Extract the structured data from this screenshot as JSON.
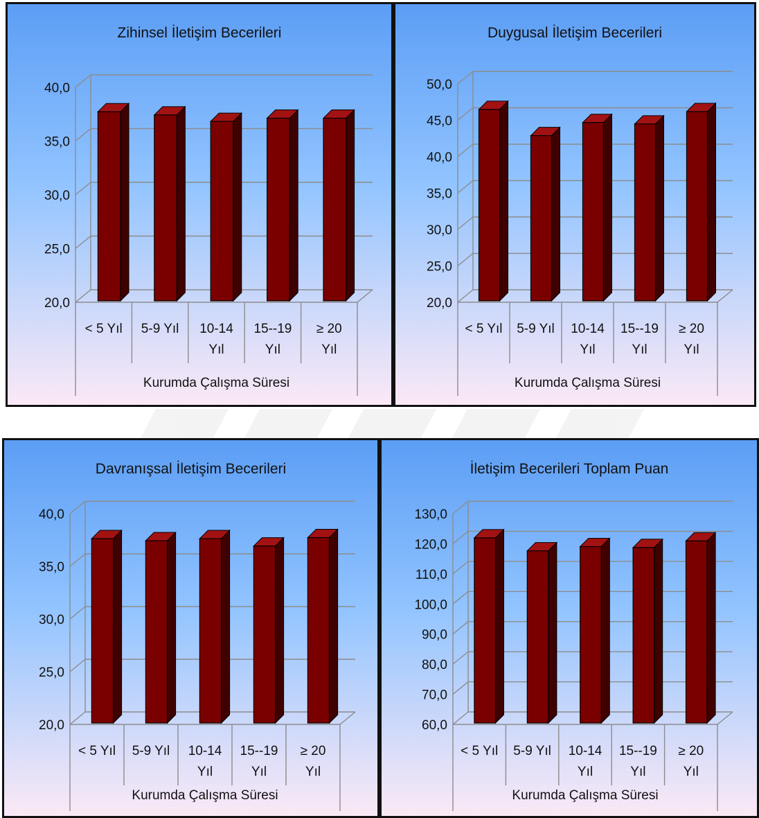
{
  "colors": {
    "bg_top": "#5c9ef5",
    "bg_mid": "#92c4ff",
    "bg_bottom": "#fbe9f6",
    "bar_front": "#7a0000",
    "bar_side": "#3f0000",
    "bar_top": "#a31212",
    "grid": "#8c8c8c",
    "text": "#111111"
  },
  "chart_data": [
    {
      "type": "bar",
      "title": "Zihinsel İletişim Becerileri",
      "xlabel": "Kurumda Çalışma Süresi",
      "ylabel": "",
      "categories": [
        "< 5  Yıl",
        "5-9 Yıl",
        "10-14 Yıl",
        "15--19 Yıl",
        "≥ 20 Yıl"
      ],
      "category_lines": [
        [
          "< 5  Yıl"
        ],
        [
          "5-9 Yıl"
        ],
        [
          "10-14",
          "Yıl"
        ],
        [
          "15--19",
          "Yıl"
        ],
        [
          "≥ 20",
          "Yıl"
        ]
      ],
      "values": [
        37.6,
        37.3,
        36.7,
        37.0,
        37.0
      ],
      "ylim": [
        20,
        40
      ],
      "yticks": [
        "20,0",
        "25,0",
        "30,0",
        "35,0",
        "40,0"
      ],
      "grid": true,
      "legend": "none"
    },
    {
      "type": "bar",
      "title": "Duygusal İletişim Becerileri",
      "xlabel": "Kurumda Çalışma Süresi",
      "ylabel": "",
      "categories": [
        "< 5  Yıl",
        "5-9 Yıl",
        "10-14 Yıl",
        "15--19 Yıl",
        "≥ 20 Yıl"
      ],
      "category_lines": [
        [
          "< 5  Yıl"
        ],
        [
          "5-9 Yıl"
        ],
        [
          "10-14",
          "Yıl"
        ],
        [
          "15--19",
          "Yıl"
        ],
        [
          "≥ 20",
          "Yıl"
        ]
      ],
      "values": [
        46.3,
        42.7,
        44.5,
        44.3,
        46.0
      ],
      "ylim": [
        20,
        50
      ],
      "yticks": [
        "20,0",
        "25,0",
        "30,0",
        "35,0",
        "40,0",
        "45,0",
        "50,0"
      ],
      "grid": true,
      "legend": "none"
    },
    {
      "type": "bar",
      "title": "Davranışsal İletişim Becerileri",
      "xlabel": "Kurumda Çalışma Süresi",
      "ylabel": "",
      "categories": [
        "< 5  Yıl",
        "5-9 Yıl",
        "10-14 Yıl",
        "15--19 Yıl",
        "≥ 20 Yıl"
      ],
      "category_lines": [
        [
          "< 5  Yıl"
        ],
        [
          "5-9 Yıl"
        ],
        [
          "10-14",
          "Yıl"
        ],
        [
          "15--19",
          "Yıl"
        ],
        [
          "≥ 20",
          "Yıl"
        ]
      ],
      "values": [
        37.5,
        37.3,
        37.5,
        36.8,
        37.6
      ],
      "ylim": [
        20,
        40
      ],
      "yticks": [
        "20,0",
        "25,0",
        "30,0",
        "35,0",
        "40,0"
      ],
      "grid": true,
      "legend": "none"
    },
    {
      "type": "bar",
      "title": "İletişim Becerileri Toplam Puan",
      "xlabel": "Kurumda Çalışma Süresi",
      "ylabel": "",
      "categories": [
        "< 5  Yıl",
        "5-9 Yıl",
        "10-14 Yıl",
        "15--19 Yıl",
        "≥ 20 Yıl"
      ],
      "category_lines": [
        [
          "< 5  Yıl"
        ],
        [
          "5-9 Yıl"
        ],
        [
          "10-14",
          "Yıl"
        ],
        [
          "15--19",
          "Yıl"
        ],
        [
          "≥ 20",
          "Yıl"
        ]
      ],
      "values": [
        121.5,
        117.2,
        118.6,
        118.3,
        120.5
      ],
      "ylim": [
        60,
        130
      ],
      "yticks": [
        "60,0",
        "70,0",
        "80,0",
        "90,0",
        "100,0",
        "110,0",
        "120,0",
        "130,0"
      ],
      "grid": true,
      "legend": "none"
    }
  ]
}
